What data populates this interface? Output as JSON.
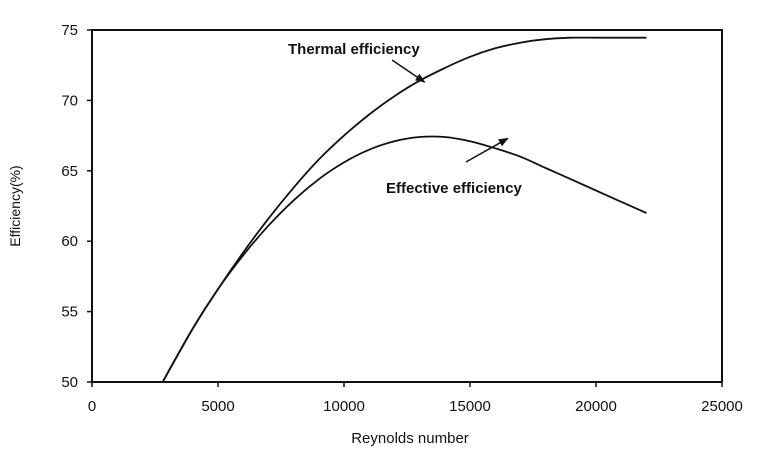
{
  "chart_data": {
    "type": "line",
    "title": "",
    "xlabel": "Reynolds number",
    "ylabel": "Efficiency(%)",
    "xlim": [
      0,
      25000
    ],
    "ylim": [
      50,
      75
    ],
    "xticks": [
      "0",
      "5000",
      "10000",
      "15000",
      "20000",
      "25000"
    ],
    "yticks": [
      "50",
      "55",
      "60",
      "65",
      "70",
      "75"
    ],
    "grid": false,
    "legend": "none",
    "series": [
      {
        "name": "Thermal efficiency",
        "color": "#111111",
        "x": [
          2800,
          4000,
          5000,
          6000,
          7000,
          8000,
          9000,
          10000,
          11000,
          12000,
          13000,
          14000,
          15000,
          16000,
          17000,
          18000,
          19000,
          20000,
          21000,
          22000
        ],
        "y": [
          50.0,
          53.8,
          56.6,
          59.2,
          61.6,
          63.8,
          65.8,
          67.5,
          69.0,
          70.3,
          71.4,
          72.3,
          73.1,
          73.7,
          74.1,
          74.35,
          74.45,
          74.45,
          74.45,
          74.45
        ]
      },
      {
        "name": "Effective efficiency",
        "color": "#111111",
        "x": [
          2800,
          4000,
          5000,
          6000,
          7000,
          8000,
          9000,
          10000,
          11000,
          12000,
          13000,
          14000,
          15000,
          16000,
          17000,
          18000,
          19000,
          20000,
          21000,
          22000
        ],
        "y": [
          50.0,
          53.8,
          56.6,
          59.0,
          61.1,
          62.9,
          64.4,
          65.6,
          66.5,
          67.1,
          67.4,
          67.4,
          67.1,
          66.6,
          66.0,
          65.2,
          64.4,
          63.6,
          62.8,
          62.0
        ]
      }
    ],
    "annotations": [
      {
        "text": "Thermal efficiency",
        "target_x": 13200,
        "target_y": 71.3
      },
      {
        "text": "Effective efficiency",
        "target_x": 16500,
        "target_y": 67.3
      }
    ]
  }
}
